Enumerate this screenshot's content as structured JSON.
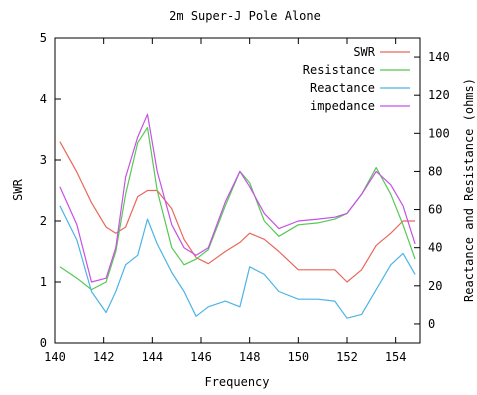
{
  "chart_data": {
    "type": "line",
    "title": "2m Super-J Pole Alone",
    "xlabel": "Frequency",
    "ylabel": "SWR",
    "y2label": "Reactance and Resistance (ohms)",
    "xlim": [
      140,
      155
    ],
    "ylim": [
      0,
      5
    ],
    "y2lim": [
      -10,
      150
    ],
    "xticks": [
      "140",
      "142",
      "144",
      "146",
      "148",
      "150",
      "152",
      "154"
    ],
    "xtick_values": [
      140,
      142,
      144,
      146,
      148,
      150,
      152,
      154
    ],
    "yticks": [
      "0",
      "1",
      "2",
      "3",
      "4",
      "5"
    ],
    "ytick_values": [
      0,
      1,
      2,
      3,
      4,
      5
    ],
    "y2ticks": [
      "0",
      "20",
      "40",
      "60",
      "80",
      "100",
      "120",
      "140"
    ],
    "y2tick_values": [
      0,
      20,
      40,
      60,
      80,
      100,
      120,
      140
    ],
    "grid": false,
    "legend_position": "top-right",
    "series": [
      {
        "name": "SWR",
        "axis": "left",
        "color": "#e8685a",
        "x": [
          140.2,
          140.9,
          141.5,
          142.1,
          142.5,
          142.9,
          143.4,
          143.8,
          144.2,
          144.8,
          145.3,
          145.8,
          146.3,
          147.0,
          147.6,
          148.0,
          148.6,
          149.2,
          150.0,
          150.8,
          151.5,
          152.0,
          152.6,
          153.2,
          153.8,
          154.3,
          154.8
        ],
        "values": [
          3.3,
          2.8,
          2.3,
          1.9,
          1.8,
          1.9,
          2.4,
          2.5,
          2.5,
          2.2,
          1.7,
          1.4,
          1.3,
          1.5,
          1.65,
          1.8,
          1.7,
          1.5,
          1.2,
          1.2,
          1.2,
          1.0,
          1.2,
          1.6,
          1.8,
          2.0,
          2.0
        ]
      },
      {
        "name": "Resistance",
        "axis": "right",
        "color": "#55c855",
        "x": [
          140.2,
          140.9,
          141.5,
          142.1,
          142.5,
          142.9,
          143.4,
          143.8,
          144.2,
          144.8,
          145.3,
          145.8,
          146.3,
          147.0,
          147.6,
          148.0,
          148.6,
          149.2,
          150.0,
          150.8,
          151.5,
          152.0,
          152.6,
          153.2,
          153.8,
          154.3,
          154.8
        ],
        "values": [
          30,
          24,
          18,
          22,
          38,
          68,
          95,
          103,
          70,
          40,
          31,
          34,
          39,
          62,
          80,
          74,
          54,
          46,
          52,
          53,
          55,
          58,
          68,
          82,
          68,
          52,
          34
        ]
      },
      {
        "name": "Reactance",
        "axis": "right",
        "color": "#4cb4e6",
        "x": [
          140.2,
          140.9,
          141.5,
          142.1,
          142.5,
          142.9,
          143.4,
          143.8,
          144.2,
          144.8,
          145.3,
          145.8,
          146.3,
          147.0,
          147.6,
          148.0,
          148.6,
          149.2,
          150.0,
          150.8,
          151.5,
          152.0,
          152.6,
          153.2,
          153.8,
          154.3,
          154.8
        ],
        "values": [
          62,
          44,
          17,
          6,
          17,
          31,
          36,
          55,
          42,
          27,
          17,
          4,
          9,
          12,
          9,
          30,
          26,
          17,
          13,
          13,
          12,
          3,
          5,
          18,
          31,
          37,
          26
        ]
      },
      {
        "name": "impedance",
        "axis": "right",
        "color": "#c850e6",
        "x": [
          140.2,
          140.9,
          141.5,
          142.1,
          142.5,
          142.9,
          143.4,
          143.8,
          144.2,
          144.8,
          145.3,
          145.8,
          146.3,
          147.0,
          147.6,
          148.0,
          148.6,
          149.2,
          150.0,
          150.8,
          151.5,
          152.0,
          152.6,
          153.2,
          153.8,
          154.3,
          154.8
        ],
        "values": [
          72,
          52,
          22,
          24,
          40,
          77,
          98,
          110,
          80,
          52,
          40,
          36,
          40,
          64,
          80,
          72,
          58,
          50,
          54,
          55,
          56,
          58,
          68,
          80,
          73,
          62,
          42
        ]
      }
    ]
  },
  "colors": {
    "axis": "#000000",
    "background": "#ffffff"
  }
}
